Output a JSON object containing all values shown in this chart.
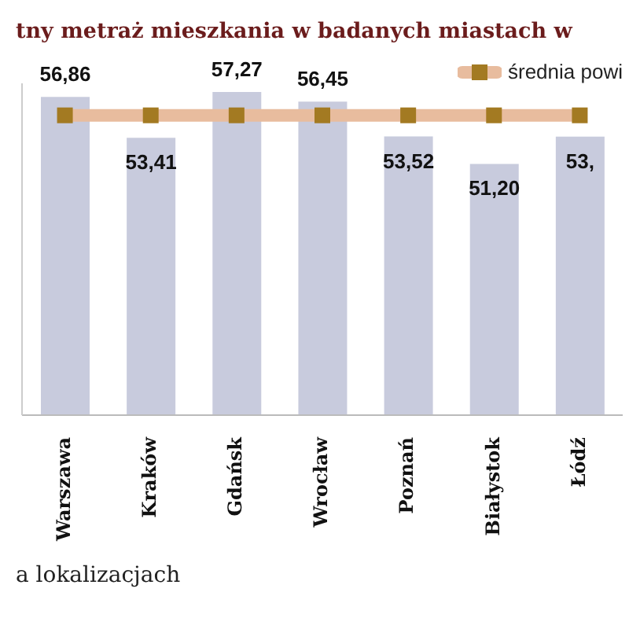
{
  "chart_data": {
    "type": "bar",
    "title": "tny metraż mieszkania w badanych miastach w",
    "categories": [
      "Warszawa",
      "Kraków",
      "Gdańsk",
      "Wrocław",
      "Poznań",
      "Białystok",
      "Łódź"
    ],
    "series": [
      {
        "color": "#c8cbdd",
        "values": [
          56.86,
          53.41,
          57.27,
          56.45,
          53.52,
          51.2,
          53.5
        ],
        "value_labels": [
          "56,86",
          "53,41",
          "57,27",
          "56,45",
          "53,52",
          "51,20",
          "53,"
        ]
      },
      {
        "type": "line",
        "name": "średnia powi",
        "color": "#e8bc9e",
        "values": [
          55.3,
          55.3,
          55.3,
          55.3,
          55.3,
          55.3,
          55.3
        ]
      }
    ],
    "ylim": [
      30,
      58
    ],
    "tick_labels": "x",
    "marker": "square",
    "legend": "top right",
    "grid": false,
    "annotations": [
      "a lokalizacjach"
    ]
  }
}
